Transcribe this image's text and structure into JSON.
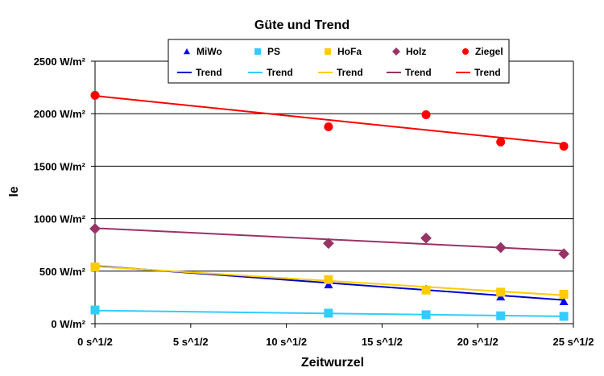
{
  "chart_data": {
    "type": "scatter",
    "title": "Güte und Trend",
    "xlabel": "Zeitwurzel",
    "ylabel": "Ie",
    "xlim": [
      0,
      25
    ],
    "ylim": [
      0,
      2500
    ],
    "x_ticks": [
      0,
      5,
      10,
      15,
      20,
      25
    ],
    "x_tick_labels": [
      "0 s^1/2",
      "5 s^1/2",
      "10 s^1/2",
      "15 s^1/2",
      "20 s^1/2",
      "25 s^1/2"
    ],
    "y_ticks": [
      0,
      500,
      1000,
      1500,
      2000,
      2500
    ],
    "y_tick_labels": [
      "0 W/m²",
      "500 W/m²",
      "1000 W/m²",
      "1500 W/m²",
      "2000 W/m²",
      "2500 W/m²"
    ],
    "grid": "horizontal",
    "legend_position": "top",
    "series": [
      {
        "name": "MiWo",
        "marker": "triangle",
        "color": "#0000ff",
        "x": [
          0,
          12.2,
          17.3,
          21.2,
          24.5
        ],
        "y": [
          540,
          370,
          330,
          255,
          210
        ]
      },
      {
        "name": "PS",
        "marker": "square",
        "color": "#33ccff",
        "x": [
          0,
          12.2,
          17.3,
          21.2,
          24.5
        ],
        "y": [
          130,
          100,
          85,
          75,
          70
        ]
      },
      {
        "name": "HoFa",
        "marker": "square",
        "color": "#ffcc00",
        "x": [
          0,
          12.2,
          17.3,
          21.2,
          24.5
        ],
        "y": [
          540,
          420,
          320,
          300,
          280
        ]
      },
      {
        "name": "Holz",
        "marker": "diamond",
        "color": "#993366",
        "x": [
          0,
          12.2,
          17.3,
          21.2,
          24.5
        ],
        "y": [
          905,
          765,
          815,
          725,
          665
        ]
      },
      {
        "name": "Ziegel",
        "marker": "circle",
        "color": "#ff0000",
        "x": [
          0,
          12.2,
          17.3,
          21.2,
          24.5
        ],
        "y": [
          2175,
          1875,
          1990,
          1730,
          1690
        ]
      }
    ],
    "trends": [
      {
        "name": "Trend",
        "color": "#0000cc",
        "x": [
          0,
          24.5
        ],
        "y": [
          550,
          225
        ]
      },
      {
        "name": "Trend",
        "color": "#33ccff",
        "x": [
          0,
          24.5
        ],
        "y": [
          125,
          70
        ]
      },
      {
        "name": "Trend",
        "color": "#ffcc00",
        "x": [
          0,
          24.5
        ],
        "y": [
          545,
          270
        ]
      },
      {
        "name": "Trend",
        "color": "#993366",
        "x": [
          0,
          24.5
        ],
        "y": [
          910,
          695
        ]
      },
      {
        "name": "Trend",
        "color": "#ff0000",
        "x": [
          0,
          24.5
        ],
        "y": [
          2170,
          1710
        ]
      }
    ]
  }
}
